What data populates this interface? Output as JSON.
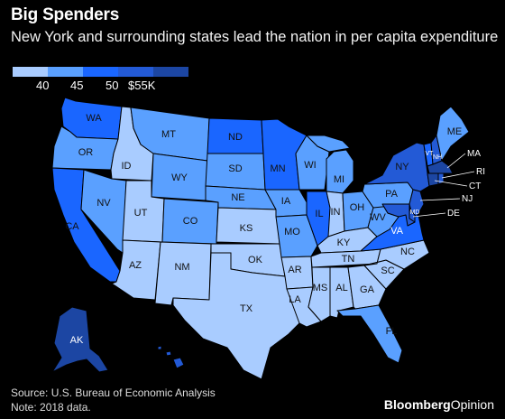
{
  "header": {
    "title": "Big Spenders",
    "subtitle": "New York and surrounding states lead the nation in per capita expenditure"
  },
  "legend": {
    "colors": [
      "#a9ccff",
      "#5aa0ff",
      "#1a66ff",
      "#235ad6",
      "#1c46a3"
    ],
    "labels": [
      "40",
      "45",
      "50",
      "$55K"
    ]
  },
  "states": {
    "WA": "WA",
    "OR": "OR",
    "CA": "CA",
    "ID": "ID",
    "NV": "NV",
    "MT": "MT",
    "WY": "WY",
    "UT": "UT",
    "CO": "CO",
    "AZ": "AZ",
    "NM": "NM",
    "ND": "ND",
    "SD": "SD",
    "NE": "NE",
    "KS": "KS",
    "OK": "OK",
    "TX": "TX",
    "MN": "MN",
    "IA": "IA",
    "MO": "MO",
    "AR": "AR",
    "LA": "LA",
    "WI": "WI",
    "IL": "IL",
    "MI": "MI",
    "IN": "IN",
    "OH": "OH",
    "KY": "KY",
    "TN": "TN",
    "MS": "MS",
    "AL": "AL",
    "GA": "GA",
    "FL": "FL",
    "SC": "SC",
    "NC": "NC",
    "VA": "VA",
    "WV": "WV",
    "PA": "PA",
    "NY": "NY",
    "ME": "ME",
    "VT": "VT",
    "NH": "NH",
    "MA": "MA",
    "RI": "RI",
    "CT": "CT",
    "NJ": "NJ",
    "DE": "DE",
    "MD": "MD",
    "AK": "AK"
  },
  "state_bins": {
    "WA": 3,
    "OR": 2,
    "CA": 3,
    "ID": 1,
    "NV": 2,
    "MT": 2,
    "WY": 2,
    "UT": 1,
    "CO": 2,
    "AZ": 1,
    "NM": 1,
    "ND": 3,
    "SD": 2,
    "NE": 2,
    "KS": 1,
    "OK": 1,
    "TX": 1,
    "MN": 3,
    "IA": 2,
    "MO": 2,
    "AR": 1,
    "LA": 1,
    "WI": 2,
    "IL": 3,
    "MI": 2,
    "IN": 1,
    "OH": 2,
    "KY": 1,
    "TN": 1,
    "MS": 1,
    "AL": 1,
    "GA": 1,
    "FL": 2,
    "SC": 1,
    "NC": 1,
    "VA": 3,
    "WV": 2,
    "PA": 2,
    "NY": 4,
    "ME": 2,
    "VT": 3,
    "NH": 4,
    "MA": 5,
    "RI": 4,
    "CT": 5,
    "NJ": 4,
    "DE": 4,
    "MD": 4,
    "AK": 5,
    "HI": 4
  },
  "footer": {
    "source": "Source: U.S. Bureau of Economic Analysis",
    "note": "Note: 2018 data.",
    "brand_bold": "Bloomberg",
    "brand_light": "Opinion"
  }
}
